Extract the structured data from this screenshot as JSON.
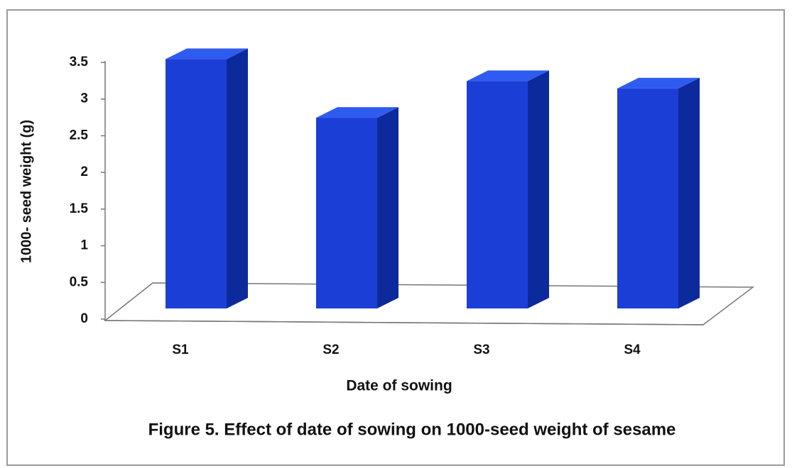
{
  "chart_data": {
    "type": "bar3d",
    "caption": "Figure 5. Effect of date of sowing on 1000-seed weight  of sesame",
    "xlabel": "Date of sowing",
    "ylabel": "1000- seed weight (g)",
    "categories": [
      "S1",
      "S2",
      "S3",
      "S4"
    ],
    "values": [
      3.4,
      2.6,
      3.1,
      3.0
    ],
    "color": "#1b3fd6",
    "ylim": [
      0,
      3.5
    ],
    "yticks": [
      0,
      0.5,
      1,
      1.5,
      2,
      2.5,
      3,
      3.5
    ],
    "grid": false
  }
}
